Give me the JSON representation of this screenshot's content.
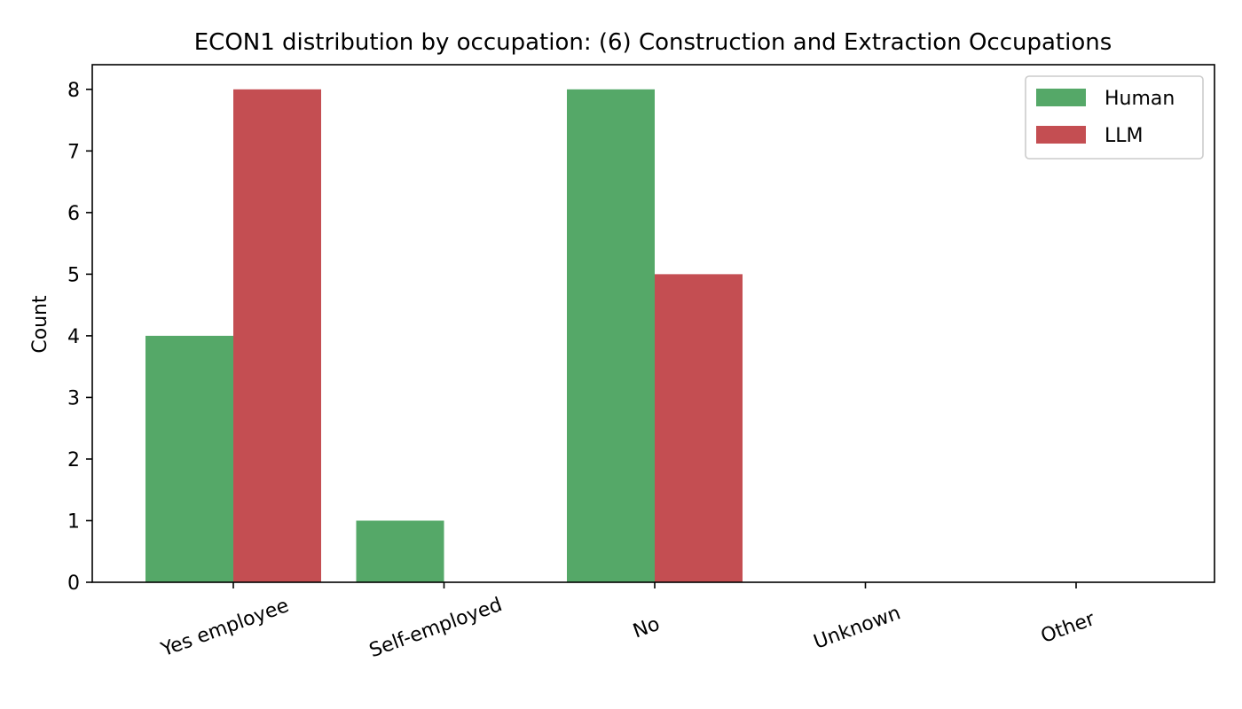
{
  "chart_data": {
    "type": "bar",
    "title": "ECON1 distribution by occupation: (6) Construction and Extraction Occupations",
    "xlabel": "",
    "ylabel": "Count",
    "categories": [
      "Yes employee",
      "Self-employed",
      "No",
      "Unknown",
      "Other"
    ],
    "series": [
      {
        "name": "Human",
        "color": "#55a868",
        "values": [
          4,
          1,
          8,
          0,
          0
        ]
      },
      {
        "name": "LLM",
        "color": "#c44e52",
        "values": [
          8,
          0,
          5,
          0,
          0
        ]
      }
    ],
    "ylim": [
      0,
      8.4
    ],
    "yticks": [
      0,
      1,
      2,
      3,
      4,
      5,
      6,
      7,
      8
    ],
    "grid": false,
    "legend_position": "top-right"
  }
}
